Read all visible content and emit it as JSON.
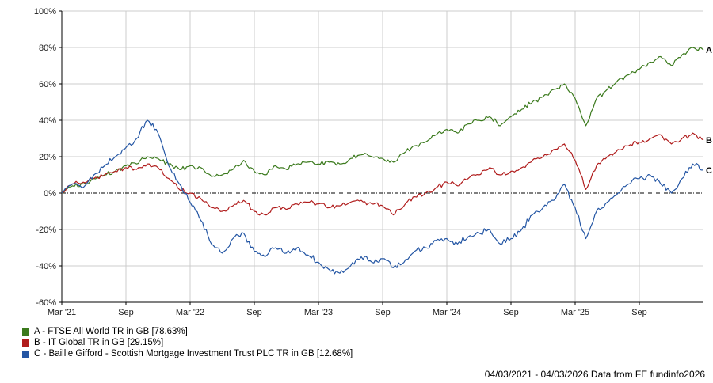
{
  "chart_data": {
    "type": "line",
    "title": "",
    "xlabel": "",
    "ylabel": "",
    "x_unit": "months since Mar 2021",
    "xlim": [
      0,
      60
    ],
    "ylim": [
      -60,
      100
    ],
    "grid": true,
    "legend_position": "bottom-left",
    "x_ticks": [
      {
        "pos": 0,
        "label": "Mar '21"
      },
      {
        "pos": 6,
        "label": "Sep"
      },
      {
        "pos": 12,
        "label": "Mar '22"
      },
      {
        "pos": 18,
        "label": "Sep"
      },
      {
        "pos": 24,
        "label": "Mar '23"
      },
      {
        "pos": 30,
        "label": "Sep"
      },
      {
        "pos": 36,
        "label": "Mar '24"
      },
      {
        "pos": 42,
        "label": "Sep"
      },
      {
        "pos": 48,
        "label": "Mar '25"
      },
      {
        "pos": 54,
        "label": "Sep"
      }
    ],
    "y_ticks": [
      {
        "value": 100,
        "label": "100%"
      },
      {
        "value": 80,
        "label": "80%"
      },
      {
        "value": 60,
        "label": "60%"
      },
      {
        "value": 40,
        "label": "40%"
      },
      {
        "value": 20,
        "label": "20%"
      },
      {
        "value": 0,
        "label": "0%"
      },
      {
        "value": -20,
        "label": "-20%"
      },
      {
        "value": -40,
        "label": "-40%"
      },
      {
        "value": -60,
        "label": "-60%"
      }
    ],
    "series": [
      {
        "name": "A - FTSE All World TR in GB [78.63%]",
        "end_label": "A",
        "final_value": 78.63,
        "color": "#3b7a1d",
        "values": [
          0,
          4,
          5,
          8,
          10,
          12,
          15,
          16,
          20,
          19,
          16,
          13,
          15,
          14,
          9,
          10,
          13,
          18,
          12,
          10,
          15,
          13,
          16,
          17,
          16,
          17,
          16,
          19,
          21,
          20,
          19,
          17,
          22,
          26,
          28,
          32,
          35,
          33,
          38,
          40,
          42,
          37,
          42,
          46,
          50,
          53,
          57,
          60,
          52,
          37,
          52,
          57,
          62,
          65,
          68,
          72,
          75,
          70,
          76,
          80,
          78.63
        ]
      },
      {
        "name": "B - IT Global TR in GB [29.15%]",
        "end_label": "B",
        "final_value": 29.15,
        "color": "#b01c1c",
        "values": [
          0,
          5,
          6,
          8,
          10,
          12,
          14,
          13,
          16,
          14,
          8,
          2,
          0,
          -3,
          -8,
          -10,
          -7,
          -4,
          -10,
          -12,
          -8,
          -9,
          -6,
          -5,
          -6,
          -8,
          -7,
          -5,
          -4,
          -6,
          -7,
          -12,
          -7,
          -2,
          0,
          3,
          6,
          4,
          8,
          10,
          14,
          10,
          12,
          14,
          18,
          20,
          24,
          27,
          18,
          2,
          15,
          20,
          24,
          26,
          28,
          30,
          32,
          27,
          30,
          33,
          29.15
        ]
      },
      {
        "name": "C - Baillie Gifford - Scottish Mortgage Investment Trust PLC TR in GB [12.68%]",
        "end_label": "C",
        "final_value": 12.68,
        "color": "#2456a4",
        "values": [
          0,
          5,
          3,
          10,
          15,
          20,
          25,
          30,
          40,
          33,
          15,
          5,
          -5,
          -15,
          -28,
          -33,
          -25,
          -22,
          -32,
          -35,
          -30,
          -33,
          -30,
          -34,
          -38,
          -42,
          -44,
          -40,
          -35,
          -38,
          -36,
          -41,
          -38,
          -32,
          -30,
          -26,
          -25,
          -28,
          -24,
          -22,
          -20,
          -28,
          -25,
          -20,
          -12,
          -8,
          -4,
          5,
          -8,
          -25,
          -10,
          -5,
          0,
          5,
          8,
          10,
          5,
          0,
          8,
          16,
          12.68
        ]
      }
    ]
  },
  "colors": {
    "grid": "#cccccc",
    "axis": "#000000",
    "zero_line": "#000000",
    "tick_text": "#1a1a1a",
    "end_label_text": "#000000"
  },
  "footer": {
    "text": "04/03/2021 - 04/03/2026 Data from FE fundinfo2026"
  }
}
